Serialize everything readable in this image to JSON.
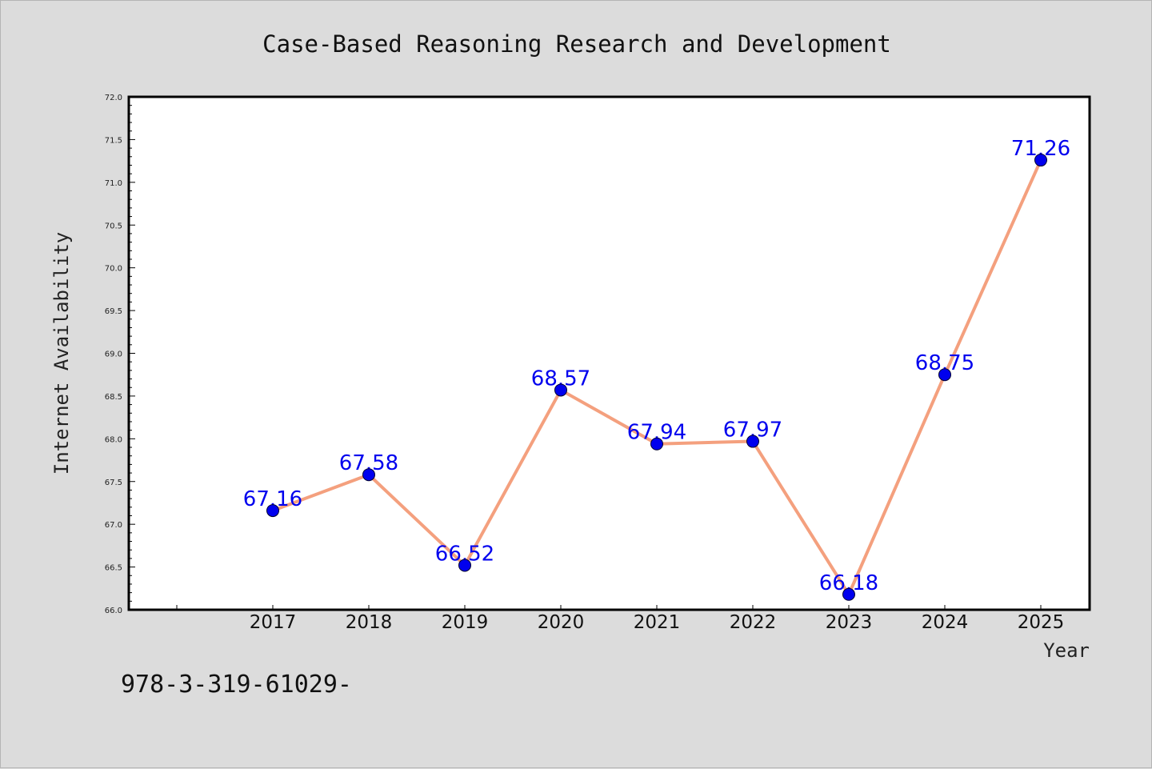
{
  "chart_data": {
    "type": "line",
    "title": "Case-Based Reasoning Research and Development",
    "xlabel": "Year",
    "ylabel": "Internet Availability",
    "categories": [
      "2017",
      "2018",
      "2019",
      "2020",
      "2021",
      "2022",
      "2023",
      "2024",
      "2025"
    ],
    "series": [
      {
        "values": [
          67.16,
          67.58,
          66.52,
          68.57,
          67.94,
          67.97,
          66.18,
          68.75,
          71.26
        ]
      }
    ],
    "data_labels": [
      "67.16",
      "67.58",
      "66.52",
      "68.57",
      "67.94",
      "67.97",
      "66.18",
      "68.75",
      "71.26"
    ],
    "ylim": [
      66.0,
      72.0
    ],
    "y_major_ticks": [
      "66.0",
      "66.5",
      "67.0",
      "67.5",
      "68.0",
      "68.5",
      "69.0",
      "69.5",
      "70.0",
      "70.5",
      "71.0",
      "71.5",
      "72.0"
    ],
    "grid": false,
    "line_color": "#f4a07e",
    "marker_color": "#0000ee",
    "label_color": "#0000ee"
  },
  "footnote": "978-3-319-61029-"
}
